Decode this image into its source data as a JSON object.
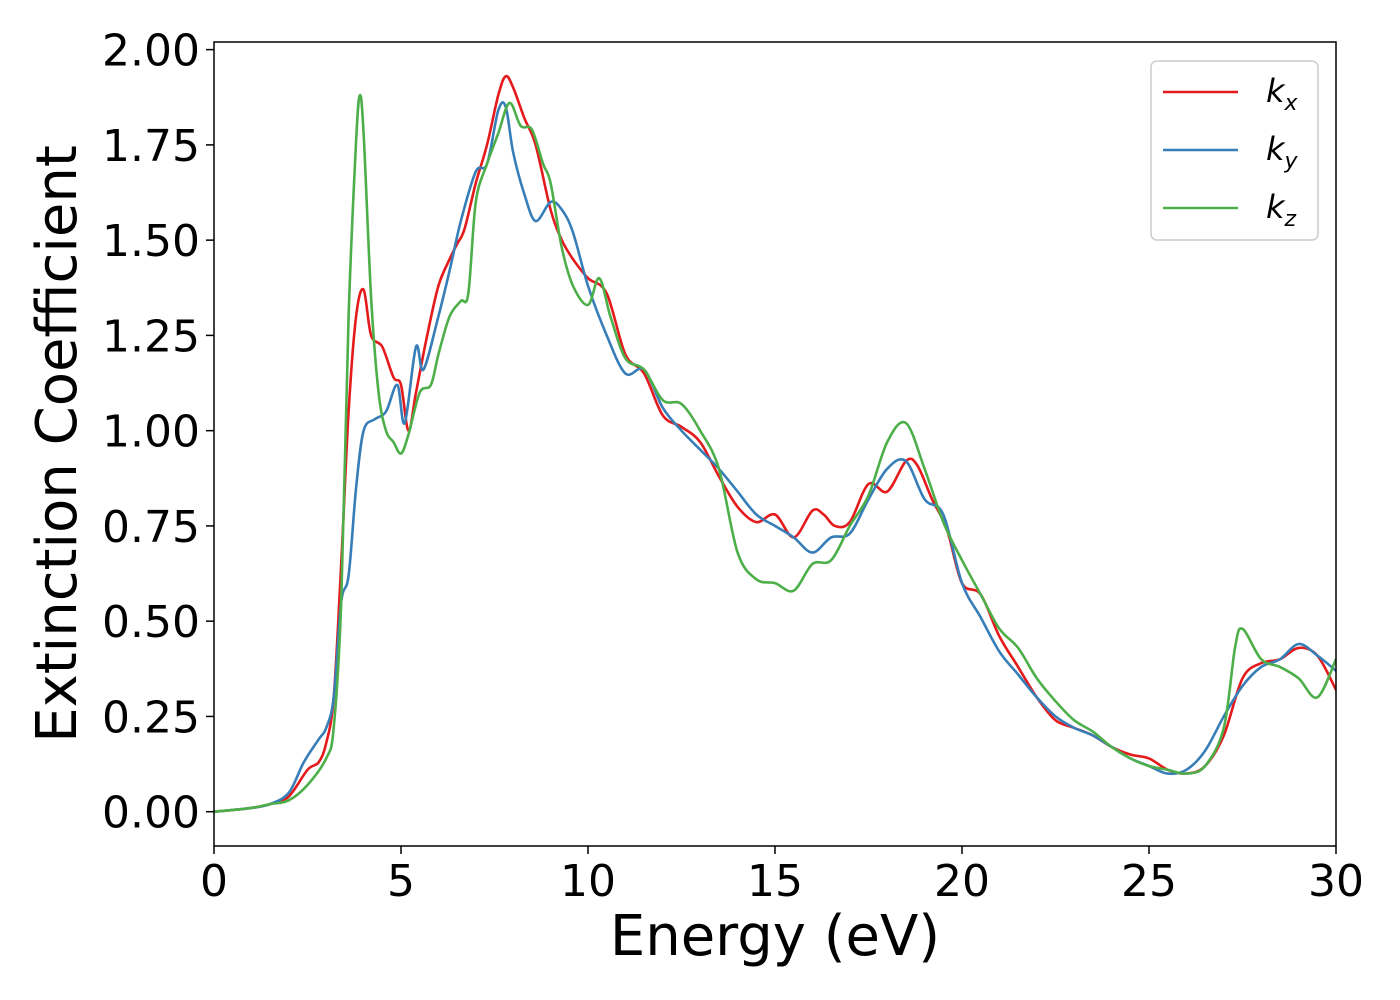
{
  "chart_data": {
    "type": "line",
    "title": "",
    "xlabel": "Energy (eV)",
    "ylabel": "Extinction Coefficient",
    "xlim": [
      0,
      30
    ],
    "ylim": [
      -0.09,
      2.02
    ],
    "xticks": [
      0,
      5,
      10,
      15,
      20,
      25,
      30
    ],
    "xtick_labels": [
      "0",
      "5",
      "10",
      "15",
      "20",
      "25",
      "30"
    ],
    "yticks": [
      0,
      0.25,
      0.5,
      0.75,
      1.0,
      1.25,
      1.5,
      1.75,
      2.0
    ],
    "ytick_labels": [
      "0.00",
      "0.25",
      "0.50",
      "0.75",
      "1.00",
      "1.25",
      "1.50",
      "1.75",
      "2.00"
    ],
    "grid": false,
    "legend_position": "top-right",
    "series": [
      {
        "name": "k_x",
        "legend_base": "k",
        "legend_sub": "x",
        "color": "#e41a1c",
        "x": [
          0,
          1,
          1.5,
          2,
          2.5,
          2.8,
          3.0,
          3.2,
          3.4,
          3.6,
          3.8,
          4.0,
          4.2,
          4.5,
          4.8,
          5.0,
          5.2,
          5.4,
          5.7,
          6.0,
          6.3,
          6.5,
          6.7,
          7.0,
          7.3,
          7.6,
          7.8,
          8.0,
          8.3,
          8.6,
          9.0,
          9.3,
          9.6,
          10.0,
          10.5,
          11.0,
          11.5,
          12.0,
          12.5,
          13.0,
          13.5,
          14.0,
          14.5,
          15.0,
          15.5,
          16.0,
          16.3,
          16.6,
          17.0,
          17.5,
          18.0,
          18.5,
          18.8,
          19.2,
          19.6,
          20.0,
          20.5,
          21.0,
          21.5,
          22.0,
          22.5,
          23.0,
          23.5,
          24.0,
          24.5,
          25.0,
          25.5,
          26.0,
          26.5,
          27.0,
          27.5,
          28.0,
          28.5,
          29.0,
          29.5,
          30.0
        ],
        "y": [
          0.0,
          0.01,
          0.02,
          0.04,
          0.11,
          0.13,
          0.18,
          0.3,
          0.65,
          1.05,
          1.3,
          1.37,
          1.25,
          1.22,
          1.14,
          1.12,
          1.0,
          1.1,
          1.25,
          1.38,
          1.45,
          1.49,
          1.53,
          1.65,
          1.75,
          1.88,
          1.93,
          1.9,
          1.82,
          1.75,
          1.58,
          1.5,
          1.45,
          1.4,
          1.36,
          1.2,
          1.15,
          1.04,
          1.01,
          0.97,
          0.88,
          0.8,
          0.76,
          0.78,
          0.72,
          0.79,
          0.78,
          0.75,
          0.76,
          0.86,
          0.84,
          0.92,
          0.91,
          0.82,
          0.74,
          0.6,
          0.57,
          0.46,
          0.38,
          0.3,
          0.24,
          0.22,
          0.2,
          0.17,
          0.15,
          0.14,
          0.11,
          0.1,
          0.12,
          0.2,
          0.35,
          0.39,
          0.4,
          0.43,
          0.41,
          0.32
        ]
      },
      {
        "name": "k_y",
        "legend_base": "k",
        "legend_sub": "y",
        "color": "#377eb8",
        "x": [
          0,
          1,
          1.5,
          2,
          2.4,
          2.8,
          3.0,
          3.2,
          3.4,
          3.6,
          3.8,
          4.0,
          4.3,
          4.6,
          4.9,
          5.1,
          5.4,
          5.6,
          6.0,
          6.3,
          6.6,
          7.0,
          7.3,
          7.6,
          7.8,
          8.0,
          8.3,
          8.6,
          9.0,
          9.3,
          9.6,
          10.0,
          10.5,
          11.0,
          11.5,
          12.0,
          12.5,
          13.0,
          13.5,
          14.0,
          14.5,
          15.0,
          15.5,
          16.0,
          16.5,
          17.0,
          17.5,
          18.0,
          18.5,
          19.0,
          19.5,
          20.0,
          20.5,
          21.0,
          21.5,
          22.0,
          22.5,
          23.0,
          23.5,
          24.0,
          24.5,
          25.0,
          25.5,
          26.0,
          26.5,
          27.0,
          27.5,
          28.0,
          28.5,
          29.0,
          29.5,
          30.0
        ],
        "y": [
          0.0,
          0.01,
          0.02,
          0.05,
          0.13,
          0.19,
          0.22,
          0.3,
          0.55,
          0.62,
          0.85,
          1.0,
          1.03,
          1.05,
          1.12,
          1.02,
          1.22,
          1.16,
          1.3,
          1.42,
          1.55,
          1.68,
          1.7,
          1.84,
          1.85,
          1.73,
          1.62,
          1.55,
          1.6,
          1.58,
          1.52,
          1.38,
          1.25,
          1.15,
          1.16,
          1.06,
          1.0,
          0.95,
          0.9,
          0.84,
          0.78,
          0.75,
          0.72,
          0.68,
          0.72,
          0.73,
          0.82,
          0.9,
          0.92,
          0.82,
          0.78,
          0.6,
          0.51,
          0.42,
          0.36,
          0.3,
          0.25,
          0.22,
          0.2,
          0.17,
          0.14,
          0.12,
          0.1,
          0.11,
          0.16,
          0.25,
          0.33,
          0.38,
          0.4,
          0.44,
          0.41,
          0.37
        ]
      },
      {
        "name": "k_z",
        "legend_base": "k",
        "legend_sub": "z",
        "color": "#4daf4a",
        "x": [
          0,
          1,
          1.5,
          2,
          2.5,
          3.0,
          3.2,
          3.4,
          3.6,
          3.8,
          3.9,
          4.0,
          4.2,
          4.4,
          4.6,
          4.8,
          5.0,
          5.2,
          5.5,
          5.8,
          6.0,
          6.3,
          6.6,
          6.8,
          7.0,
          7.3,
          7.6,
          7.9,
          8.2,
          8.5,
          8.8,
          9.0,
          9.3,
          9.6,
          10.0,
          10.3,
          10.6,
          11.0,
          11.5,
          12.0,
          12.5,
          13.0,
          13.5,
          14.0,
          14.5,
          15.0,
          15.5,
          16.0,
          16.5,
          17.0,
          17.5,
          18.0,
          18.5,
          19.0,
          19.5,
          20.0,
          20.5,
          21.0,
          21.5,
          22.0,
          22.5,
          23.0,
          23.5,
          24.0,
          24.5,
          25.0,
          25.5,
          26.0,
          26.5,
          27.0,
          27.3,
          27.5,
          28.0,
          28.5,
          29.0,
          29.5,
          30.0
        ],
        "y": [
          0.0,
          0.01,
          0.02,
          0.03,
          0.07,
          0.14,
          0.22,
          0.55,
          1.3,
          1.76,
          1.88,
          1.78,
          1.35,
          1.1,
          1.0,
          0.97,
          0.94,
          0.99,
          1.1,
          1.12,
          1.2,
          1.3,
          1.34,
          1.36,
          1.6,
          1.7,
          1.78,
          1.86,
          1.8,
          1.79,
          1.7,
          1.65,
          1.48,
          1.38,
          1.33,
          1.4,
          1.3,
          1.19,
          1.16,
          1.08,
          1.07,
          1.0,
          0.9,
          0.68,
          0.61,
          0.6,
          0.58,
          0.65,
          0.66,
          0.75,
          0.83,
          0.97,
          1.02,
          0.9,
          0.76,
          0.66,
          0.57,
          0.48,
          0.43,
          0.35,
          0.29,
          0.24,
          0.21,
          0.17,
          0.14,
          0.12,
          0.11,
          0.1,
          0.12,
          0.22,
          0.43,
          0.48,
          0.4,
          0.38,
          0.35,
          0.3,
          0.4
        ]
      }
    ]
  }
}
